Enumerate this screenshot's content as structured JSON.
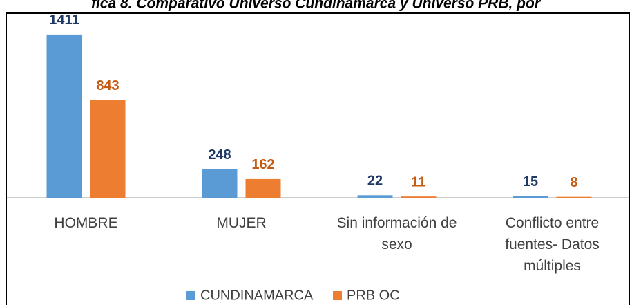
{
  "chart_data": {
    "type": "bar",
    "title": "fica 8. Comparativo Universo Cundinamarca y Universo PRB, por",
    "categories": [
      "HOMBRE",
      "MUJER",
      "Sin información de sexo",
      "Conflicto entre fuentes- Datos múltiples"
    ],
    "series": [
      {
        "name": "CUNDINAMARCA",
        "color": "#5b9bd5",
        "label_color": "#1f3864",
        "values": [
          1411,
          248,
          22,
          15
        ]
      },
      {
        "name": "PRB OC",
        "color": "#ed7d31",
        "label_color": "#c55a11",
        "values": [
          843,
          162,
          11,
          8
        ]
      }
    ],
    "ylim": [
      0,
      1500
    ]
  }
}
